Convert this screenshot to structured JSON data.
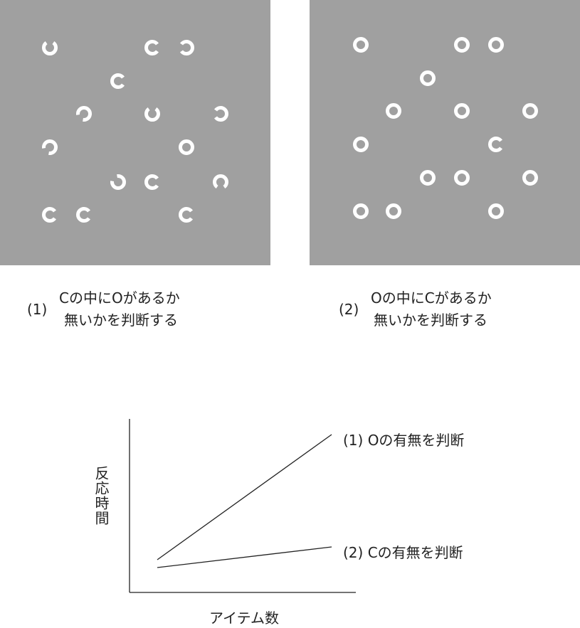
{
  "panels": [
    {
      "number": "(1)",
      "line1": "Cの中にOがあるか",
      "line2": "無いかを判断する",
      "items": [
        {
          "shape": "C",
          "gap": "top"
        },
        {
          "shape": "C",
          "gap": "right"
        },
        {
          "shape": "C",
          "gap": "left"
        },
        {
          "shape": "C",
          "gap": "right"
        },
        {
          "shape": "C",
          "gap": "bottom-left"
        },
        {
          "shape": "C",
          "gap": "top"
        },
        {
          "shape": "C",
          "gap": "left"
        },
        {
          "shape": "C",
          "gap": "bottom-left"
        },
        {
          "shape": "O",
          "gap": "none"
        },
        {
          "shape": "C",
          "gap": "top-left"
        },
        {
          "shape": "C",
          "gap": "right"
        },
        {
          "shape": "C",
          "gap": "bottom"
        },
        {
          "shape": "C",
          "gap": "right"
        },
        {
          "shape": "C",
          "gap": "right"
        },
        {
          "shape": "C",
          "gap": "right"
        }
      ]
    },
    {
      "number": "(2)",
      "line1": "Oの中にCがあるか",
      "line2": "無いかを判断する",
      "items": [
        {
          "shape": "O",
          "gap": "none"
        },
        {
          "shape": "O",
          "gap": "none"
        },
        {
          "shape": "O",
          "gap": "none"
        },
        {
          "shape": "O",
          "gap": "none"
        },
        {
          "shape": "O",
          "gap": "none"
        },
        {
          "shape": "O",
          "gap": "none"
        },
        {
          "shape": "O",
          "gap": "none"
        },
        {
          "shape": "O",
          "gap": "none"
        },
        {
          "shape": "C",
          "gap": "right"
        },
        {
          "shape": "O",
          "gap": "none"
        },
        {
          "shape": "O",
          "gap": "none"
        },
        {
          "shape": "O",
          "gap": "none"
        },
        {
          "shape": "O",
          "gap": "none"
        },
        {
          "shape": "O",
          "gap": "none"
        },
        {
          "shape": "O",
          "gap": "none"
        }
      ]
    }
  ],
  "graph": {
    "xlabel": "アイテム数",
    "ylabel": "反応時間",
    "series": [
      {
        "name": "(1) Oの有無を判断"
      },
      {
        "name": "(2) Cの有無を判断"
      }
    ]
  },
  "colors": {
    "panel_bg": "#a0a0a0",
    "item": "#ffffff",
    "line": "#222222"
  }
}
